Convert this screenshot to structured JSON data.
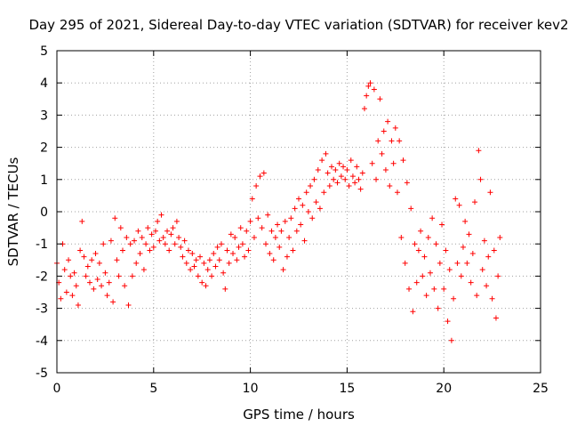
{
  "chart_data": {
    "type": "scatter",
    "title": "Day 295 of 2021, Sidereal Day-to-day VTEC variation (SDTVAR) for receiver kev2",
    "xlabel": "GPS time / hours",
    "ylabel": "SDTVAR / TECUs",
    "xlim": [
      0,
      25
    ],
    "ylim": [
      -5,
      5
    ],
    "xticks": [
      "0",
      "5",
      "10",
      "15",
      "20",
      "25"
    ],
    "yticks": [
      "-5",
      "-4",
      "-3",
      "-2",
      "-1",
      "0",
      "1",
      "2",
      "3",
      "4",
      "5"
    ],
    "grid": true,
    "marker": "+",
    "color": "#ff0000",
    "series": [
      {
        "name": "SDTVAR",
        "points": [
          [
            0.0,
            -1.6
          ],
          [
            0.1,
            -2.2
          ],
          [
            0.2,
            -2.7
          ],
          [
            0.3,
            -1.0
          ],
          [
            0.4,
            -1.8
          ],
          [
            0.5,
            -2.5
          ],
          [
            0.6,
            -1.5
          ],
          [
            0.7,
            -2.0
          ],
          [
            0.8,
            -2.6
          ],
          [
            0.9,
            -1.9
          ],
          [
            1.0,
            -2.3
          ],
          [
            1.1,
            -2.9
          ],
          [
            1.2,
            -1.2
          ],
          [
            1.3,
            -0.3
          ],
          [
            1.4,
            -1.4
          ],
          [
            1.5,
            -2.0
          ],
          [
            1.6,
            -1.7
          ],
          [
            1.7,
            -2.2
          ],
          [
            1.8,
            -1.5
          ],
          [
            1.9,
            -2.4
          ],
          [
            2.0,
            -1.3
          ],
          [
            2.1,
            -2.1
          ],
          [
            2.2,
            -1.6
          ],
          [
            2.3,
            -2.3
          ],
          [
            2.4,
            -1.0
          ],
          [
            2.5,
            -1.9
          ],
          [
            2.6,
            -2.6
          ],
          [
            2.7,
            -2.2
          ],
          [
            2.8,
            -0.9
          ],
          [
            2.9,
            -2.8
          ],
          [
            3.0,
            -0.2
          ],
          [
            3.1,
            -1.5
          ],
          [
            3.2,
            -2.0
          ],
          [
            3.3,
            -0.5
          ],
          [
            3.4,
            -1.2
          ],
          [
            3.5,
            -2.3
          ],
          [
            3.6,
            -0.8
          ],
          [
            3.7,
            -2.9
          ],
          [
            3.8,
            -1.0
          ],
          [
            3.9,
            -2.0
          ],
          [
            4.0,
            -0.9
          ],
          [
            4.1,
            -1.6
          ],
          [
            4.2,
            -0.6
          ],
          [
            4.3,
            -1.3
          ],
          [
            4.4,
            -0.8
          ],
          [
            4.5,
            -1.8
          ],
          [
            4.6,
            -1.0
          ],
          [
            4.7,
            -0.5
          ],
          [
            4.8,
            -1.2
          ],
          [
            4.9,
            -0.7
          ],
          [
            5.0,
            -1.1
          ],
          [
            5.1,
            -0.6
          ],
          [
            5.2,
            -0.3
          ],
          [
            5.3,
            -0.9
          ],
          [
            5.4,
            -0.1
          ],
          [
            5.5,
            -0.8
          ],
          [
            5.6,
            -1.0
          ],
          [
            5.7,
            -0.6
          ],
          [
            5.8,
            -1.2
          ],
          [
            5.9,
            -0.7
          ],
          [
            6.0,
            -0.5
          ],
          [
            6.1,
            -1.0
          ],
          [
            6.2,
            -0.3
          ],
          [
            6.3,
            -0.8
          ],
          [
            6.4,
            -1.1
          ],
          [
            6.5,
            -1.4
          ],
          [
            6.6,
            -0.9
          ],
          [
            6.7,
            -1.6
          ],
          [
            6.8,
            -1.2
          ],
          [
            6.9,
            -1.8
          ],
          [
            7.0,
            -1.3
          ],
          [
            7.1,
            -1.7
          ],
          [
            7.2,
            -1.5
          ],
          [
            7.3,
            -2.0
          ],
          [
            7.4,
            -1.4
          ],
          [
            7.5,
            -2.2
          ],
          [
            7.6,
            -1.6
          ],
          [
            7.7,
            -2.3
          ],
          [
            7.8,
            -1.8
          ],
          [
            7.9,
            -1.5
          ],
          [
            8.0,
            -2.0
          ],
          [
            8.1,
            -1.3
          ],
          [
            8.2,
            -1.7
          ],
          [
            8.3,
            -1.1
          ],
          [
            8.4,
            -1.5
          ],
          [
            8.5,
            -1.0
          ],
          [
            8.6,
            -1.9
          ],
          [
            8.7,
            -2.4
          ],
          [
            8.8,
            -1.2
          ],
          [
            8.9,
            -1.6
          ],
          [
            9.0,
            -0.7
          ],
          [
            9.1,
            -1.3
          ],
          [
            9.2,
            -0.8
          ],
          [
            9.3,
            -1.5
          ],
          [
            9.4,
            -1.1
          ],
          [
            9.5,
            -0.5
          ],
          [
            9.6,
            -1.0
          ],
          [
            9.7,
            -1.4
          ],
          [
            9.8,
            -0.6
          ],
          [
            9.9,
            -1.2
          ],
          [
            10.0,
            -0.3
          ],
          [
            10.1,
            0.4
          ],
          [
            10.2,
            -0.8
          ],
          [
            10.3,
            0.8
          ],
          [
            10.4,
            -0.2
          ],
          [
            10.5,
            1.1
          ],
          [
            10.6,
            -0.5
          ],
          [
            10.7,
            1.2
          ],
          [
            10.8,
            -1.0
          ],
          [
            10.9,
            -0.1
          ],
          [
            11.0,
            -1.3
          ],
          [
            11.1,
            -0.6
          ],
          [
            11.2,
            -1.5
          ],
          [
            11.3,
            -0.8
          ],
          [
            11.4,
            -0.4
          ],
          [
            11.5,
            -1.1
          ],
          [
            11.6,
            -0.6
          ],
          [
            11.7,
            -1.8
          ],
          [
            11.8,
            -0.3
          ],
          [
            11.9,
            -1.4
          ],
          [
            12.0,
            -0.8
          ],
          [
            12.1,
            -0.2
          ],
          [
            12.2,
            -1.2
          ],
          [
            12.3,
            0.1
          ],
          [
            12.4,
            -0.6
          ],
          [
            12.5,
            0.4
          ],
          [
            12.6,
            -0.4
          ],
          [
            12.7,
            0.2
          ],
          [
            12.8,
            -0.9
          ],
          [
            12.9,
            0.6
          ],
          [
            13.0,
            0.0
          ],
          [
            13.1,
            0.8
          ],
          [
            13.2,
            -0.2
          ],
          [
            13.3,
            1.0
          ],
          [
            13.4,
            0.3
          ],
          [
            13.5,
            1.3
          ],
          [
            13.6,
            0.1
          ],
          [
            13.7,
            1.6
          ],
          [
            13.8,
            0.6
          ],
          [
            13.9,
            1.8
          ],
          [
            14.0,
            1.2
          ],
          [
            14.1,
            0.8
          ],
          [
            14.2,
            1.4
          ],
          [
            14.3,
            1.0
          ],
          [
            14.4,
            1.3
          ],
          [
            14.5,
            0.9
          ],
          [
            14.6,
            1.5
          ],
          [
            14.7,
            1.1
          ],
          [
            14.8,
            1.4
          ],
          [
            14.9,
            1.0
          ],
          [
            15.0,
            1.3
          ],
          [
            15.1,
            0.8
          ],
          [
            15.2,
            1.6
          ],
          [
            15.3,
            1.1
          ],
          [
            15.4,
            0.9
          ],
          [
            15.5,
            1.4
          ],
          [
            15.6,
            1.0
          ],
          [
            15.7,
            0.7
          ],
          [
            15.8,
            1.2
          ],
          [
            15.9,
            3.2
          ],
          [
            16.0,
            3.6
          ],
          [
            16.1,
            3.9
          ],
          [
            16.2,
            4.0
          ],
          [
            16.3,
            1.5
          ],
          [
            16.4,
            3.8
          ],
          [
            16.5,
            1.0
          ],
          [
            16.6,
            2.2
          ],
          [
            16.7,
            3.5
          ],
          [
            16.8,
            1.8
          ],
          [
            16.9,
            2.5
          ],
          [
            17.0,
            1.3
          ],
          [
            17.1,
            2.8
          ],
          [
            17.2,
            0.8
          ],
          [
            17.3,
            2.2
          ],
          [
            17.4,
            1.5
          ],
          [
            17.5,
            2.6
          ],
          [
            17.6,
            0.6
          ],
          [
            17.7,
            2.2
          ],
          [
            17.8,
            -0.8
          ],
          [
            17.9,
            1.6
          ],
          [
            18.0,
            -1.6
          ],
          [
            18.1,
            0.9
          ],
          [
            18.2,
            -2.4
          ],
          [
            18.3,
            0.1
          ],
          [
            18.4,
            -3.1
          ],
          [
            18.5,
            -1.0
          ],
          [
            18.6,
            -2.2
          ],
          [
            18.7,
            -1.2
          ],
          [
            18.8,
            -0.6
          ],
          [
            18.9,
            -2.0
          ],
          [
            19.0,
            -1.4
          ],
          [
            19.1,
            -2.6
          ],
          [
            19.2,
            -0.8
          ],
          [
            19.3,
            -1.9
          ],
          [
            19.4,
            -0.2
          ],
          [
            19.5,
            -2.4
          ],
          [
            19.6,
            -1.0
          ],
          [
            19.7,
            -3.0
          ],
          [
            19.8,
            -1.6
          ],
          [
            19.9,
            -0.4
          ],
          [
            20.0,
            -2.4
          ],
          [
            20.1,
            -1.2
          ],
          [
            20.2,
            -3.4
          ],
          [
            20.3,
            -1.8
          ],
          [
            20.4,
            -4.0
          ],
          [
            20.5,
            -2.7
          ],
          [
            20.6,
            0.4
          ],
          [
            20.7,
            -1.6
          ],
          [
            20.8,
            0.2
          ],
          [
            20.9,
            -2.0
          ],
          [
            21.0,
            -1.1
          ],
          [
            21.1,
            -0.3
          ],
          [
            21.2,
            -1.6
          ],
          [
            21.3,
            -0.7
          ],
          [
            21.4,
            -2.2
          ],
          [
            21.5,
            -1.3
          ],
          [
            21.6,
            0.3
          ],
          [
            21.7,
            -2.6
          ],
          [
            21.8,
            1.9
          ],
          [
            21.9,
            1.0
          ],
          [
            22.0,
            -1.8
          ],
          [
            22.1,
            -0.9
          ],
          [
            22.2,
            -2.3
          ],
          [
            22.3,
            -1.4
          ],
          [
            22.4,
            0.6
          ],
          [
            22.5,
            -2.7
          ],
          [
            22.6,
            -1.2
          ],
          [
            22.7,
            -3.3
          ],
          [
            22.8,
            -2.0
          ],
          [
            22.9,
            -0.8
          ]
        ]
      }
    ]
  }
}
